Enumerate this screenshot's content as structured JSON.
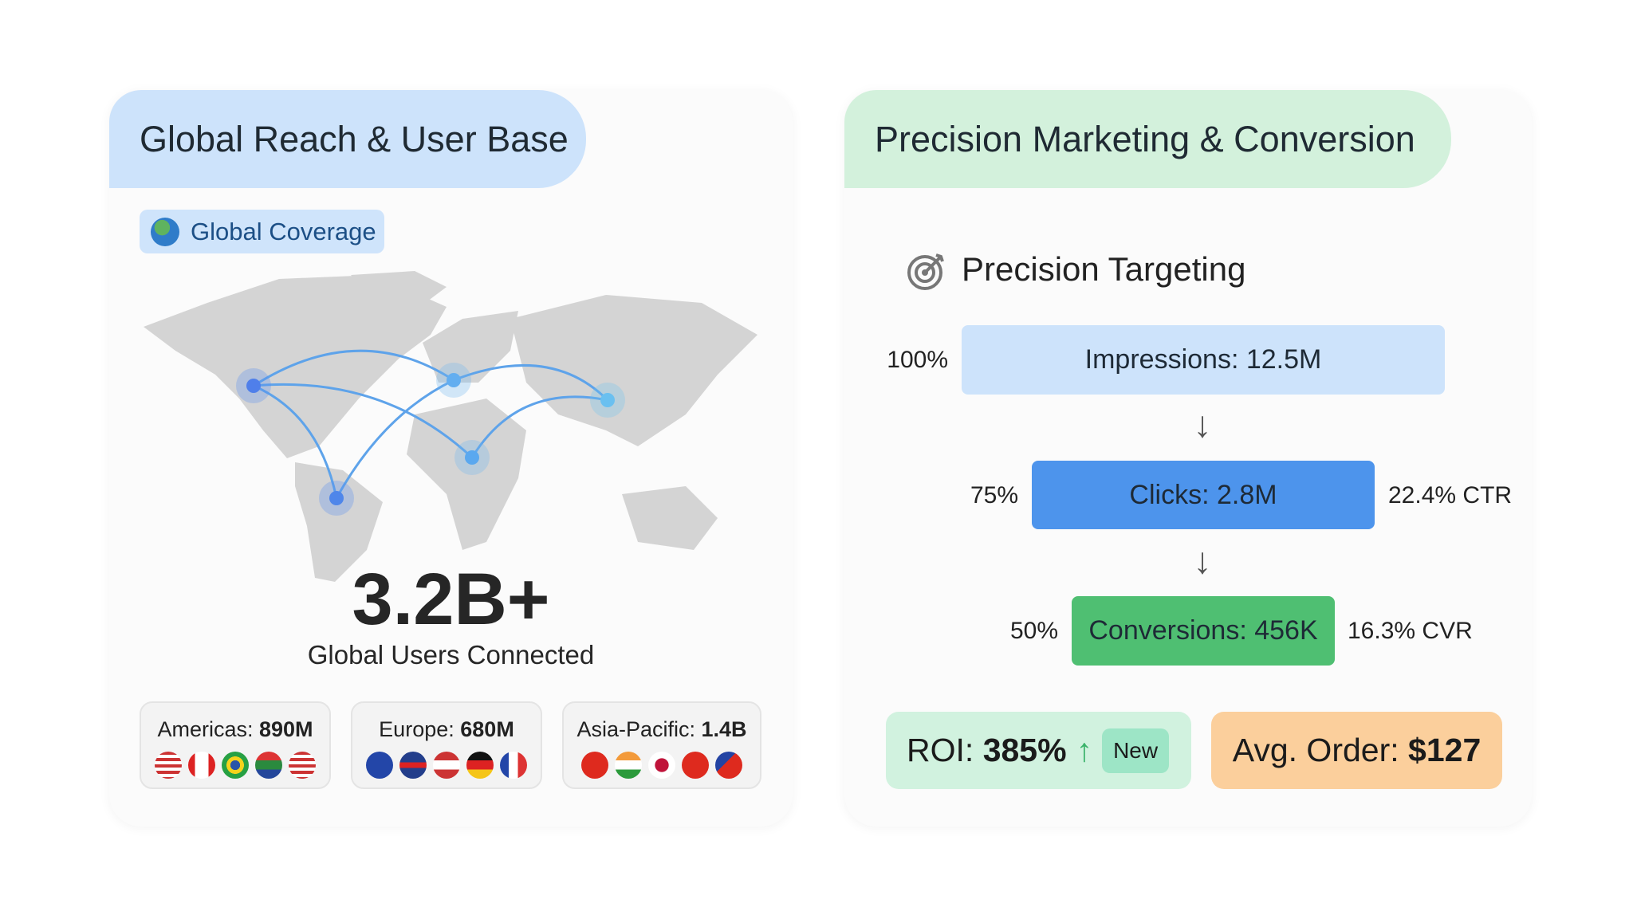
{
  "left": {
    "title": "Global Reach & User Base",
    "badge": "Global Coverage",
    "total": "3.2B+",
    "total_label": "Global Users Connected",
    "regions": [
      {
        "name": "Americas:",
        "value": "890M",
        "flags": [
          "us",
          "ca",
          "br",
          "za",
          "us"
        ]
      },
      {
        "name": "Europe:",
        "value": "680M",
        "flags": [
          "eu",
          "gb",
          "at",
          "de",
          "fr"
        ]
      },
      {
        "name": "Asia-Pacific:",
        "value": "1.4B",
        "flags": [
          "cn",
          "in",
          "jp",
          "cn",
          "tw"
        ]
      }
    ]
  },
  "right": {
    "title": "Precision Marketing & Conversion",
    "section": "Precision Targeting",
    "funnel": [
      {
        "pct": "100%",
        "label": "Impressions: 12.5M",
        "rate": ""
      },
      {
        "pct": "75%",
        "label": "Clicks: 2.8M",
        "rate": "22.4% CTR"
      },
      {
        "pct": "50%",
        "label": "Conversions: 456K",
        "rate": "16.3% CVR"
      }
    ],
    "roi": {
      "label": "ROI:",
      "value": "385%",
      "badge": "New"
    },
    "avg_order": {
      "label": "Avg. Order:",
      "value": "$127"
    }
  },
  "colors": {
    "left_header": "#cde3fb",
    "right_header": "#d3f1dc",
    "impressions": "#cde3fb",
    "clicks": "#4d94ec",
    "conversions": "#4fbf72",
    "roi_bg": "#d1f2df",
    "avg_bg": "#fbcf9c"
  }
}
